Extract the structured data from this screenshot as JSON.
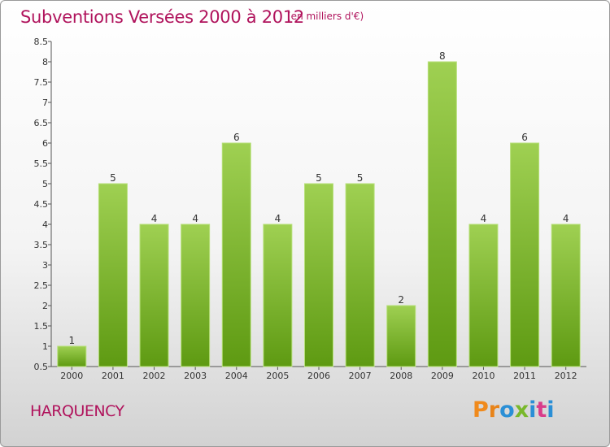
{
  "header": {
    "title": "Subventions Versées 2000 à 2012",
    "subtitle": "(en milliers d'€)"
  },
  "footer": {
    "place": "HARQUENCY",
    "logo": "Proxiti"
  },
  "colors": {
    "title": "#b0135c",
    "bar_light": "#9fd052",
    "bar_dark": "#5e9a12",
    "logo_letters": [
      "#f08a1c",
      "#e8841a",
      "#2a8fd6",
      "#79b82b",
      "#2a8fd6",
      "#d93c8a",
      "#2a8fd6"
    ]
  },
  "chart_data": {
    "type": "bar",
    "title": "Subventions Versées 2000 à 2012",
    "subtitle": "(en milliers d'€)",
    "categories": [
      "2000",
      "2001",
      "2002",
      "2003",
      "2004",
      "2005",
      "2006",
      "2007",
      "2008",
      "2009",
      "2010",
      "2011",
      "2012"
    ],
    "values": [
      1,
      5,
      4,
      4,
      6,
      4,
      5,
      5,
      2,
      8,
      4,
      6,
      4
    ],
    "data_labels": [
      "1",
      "5",
      "4",
      "4",
      "6",
      "4",
      "5",
      "5",
      "2",
      "8",
      "4",
      "6",
      "4"
    ],
    "y_ticks": [
      "0.5",
      "1",
      "1.5",
      "2",
      "2.5",
      "3",
      "3.5",
      "4",
      "4.5",
      "5",
      "5.5",
      "6",
      "6.5",
      "7",
      "7.5",
      "8",
      "8.5"
    ],
    "ylim": [
      0.5,
      8.5
    ],
    "grid": false,
    "xlabel": "",
    "ylabel": ""
  }
}
